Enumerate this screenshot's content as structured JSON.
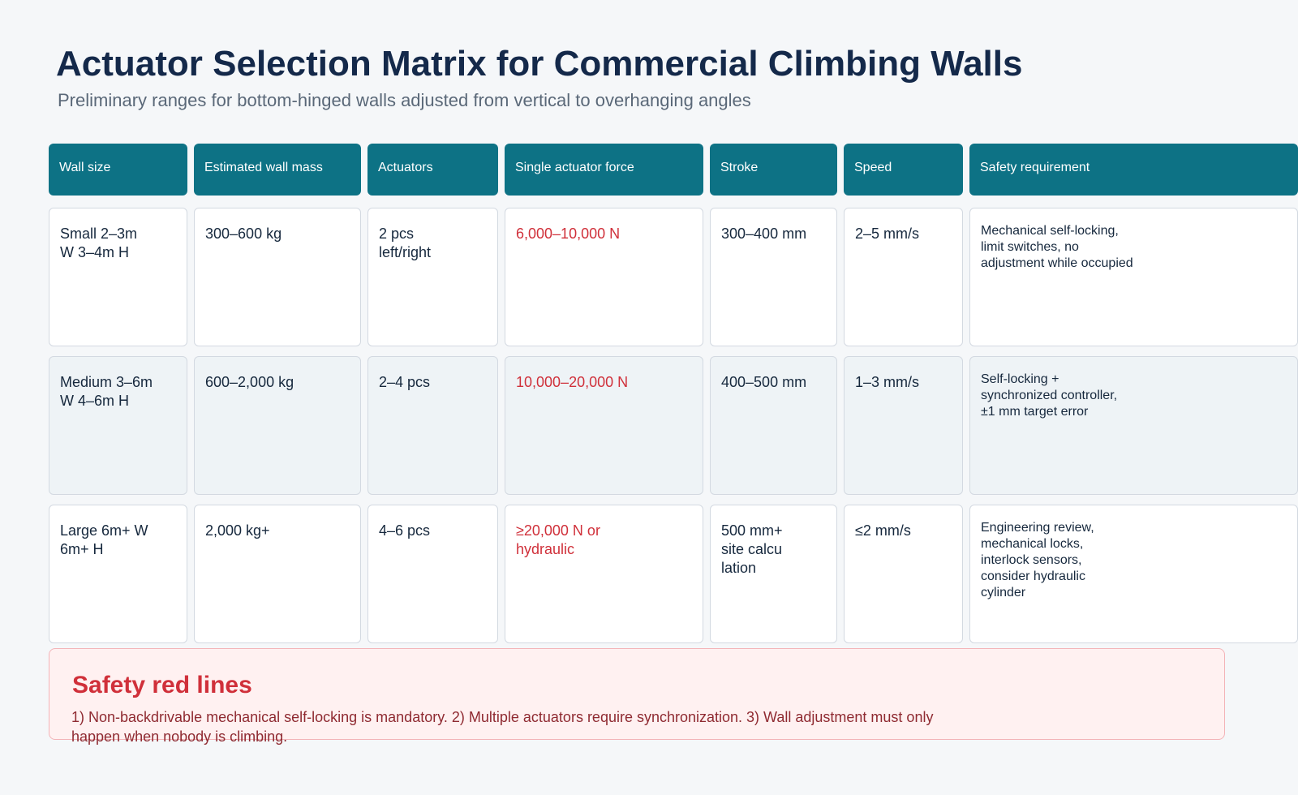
{
  "title": "Actuator Selection Matrix for Commercial Climbing Walls",
  "subtitle": "Preliminary ranges for bottom-hinged walls adjusted from vertical to overhanging angles",
  "table": {
    "headers": [
      "Wall size",
      "Estimated wall mass",
      "Actuators",
      "Single actuator force",
      "Stroke",
      "Speed",
      "Safety requirement"
    ],
    "rows": [
      {
        "wall_size": "Small 2–3m\nW 3–4m H",
        "mass": "300–600 kg",
        "actuators": "2 pcs\nleft/right",
        "force": "6,000–10,000 N",
        "stroke": "300–400 mm",
        "speed": "2–5 mm/s",
        "safety": "Mechanical self-locking,\nlimit switches, no\nadjustment while occupied"
      },
      {
        "wall_size": "Medium 3–6m\nW 4–6m H",
        "mass": "600–2,000 kg",
        "actuators": "2–4 pcs",
        "force": "10,000–20,000 N",
        "stroke": "400–500 mm",
        "speed": "1–3 mm/s",
        "safety": "Self-locking +\nsynchronized controller,\n±1 mm target error"
      },
      {
        "wall_size": "Large 6m+ W\n6m+ H",
        "mass": "2,000 kg+",
        "actuators": "4–6 pcs",
        "force": "≥20,000 N or\nhydraulic",
        "stroke": "500 mm+\nsite calcu\nlation",
        "speed": "≤2 mm/s",
        "safety": "Engineering review,\nmechanical locks,\ninterlock sensors,\nconsider hydraulic\ncylinder"
      }
    ]
  },
  "safety_red_lines": {
    "title": "Safety red lines",
    "text": "1) Non-backdrivable mechanical self-locking is mandatory.  2) Multiple actuators require synchronization.  3) Wall adjustment must only\nhappen when nobody is climbing."
  },
  "colors": {
    "header_bg": "#0d7285",
    "force_text": "#d0303a",
    "alert_bg": "#fff1f1",
    "alert_border": "#f3b4b8",
    "title_text": "#14294a"
  }
}
